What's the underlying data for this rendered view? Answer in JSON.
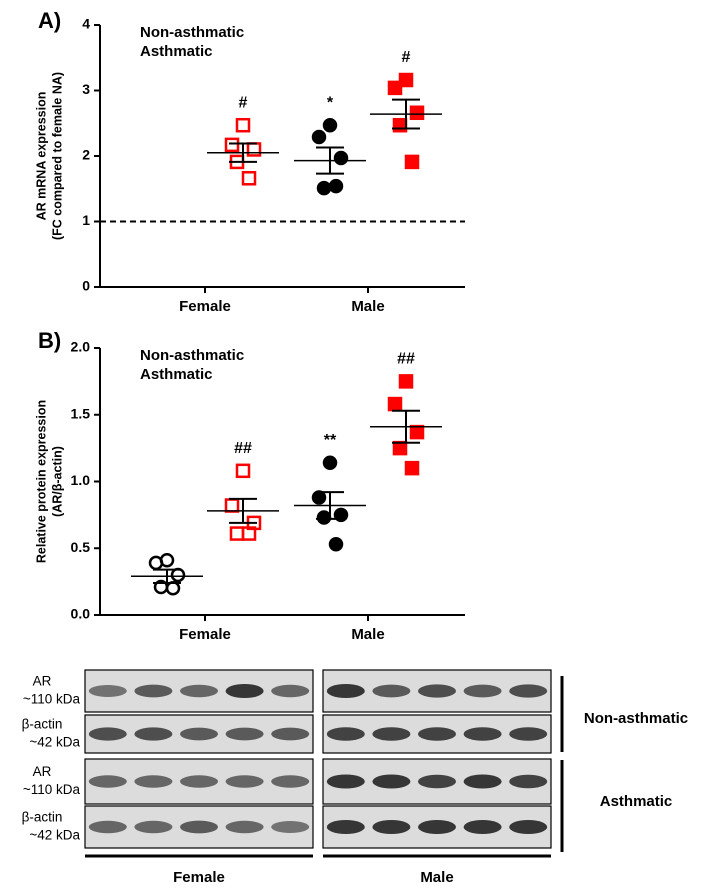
{
  "chart_data": [
    {
      "type": "dot",
      "panel": "A)",
      "y_label": [
        "AR mRNA expression",
        "(FC compared to female NA)"
      ],
      "categories": [
        "Female",
        "Male"
      ],
      "ylim": [
        0,
        4
      ],
      "yticks": [
        0,
        1,
        2,
        3,
        4
      ],
      "reference_line": 1,
      "legend": "upper left",
      "series": [
        {
          "name": "Non-asthmatic",
          "color": "#000000",
          "marker": "circle",
          "filled": [
            false,
            true
          ],
          "values": [
            null,
            [
              2.47,
              2.29,
              1.97,
              1.51,
              1.54
            ]
          ],
          "mean": [
            null,
            1.93
          ],
          "sem": [
            null,
            0.2
          ],
          "annotations": [
            null,
            "*"
          ]
        },
        {
          "name": "Asthmatic",
          "color": "#ff0000",
          "marker": "square",
          "filled": [
            false,
            true
          ],
          "values": [
            [
              2.47,
              2.17,
              2.1,
              1.91,
              1.66
            ],
            [
              3.16,
              3.04,
              2.66,
              2.47,
              1.91
            ]
          ],
          "mean": [
            2.05,
            2.64
          ],
          "sem": [
            0.14,
            0.22
          ],
          "annotations": [
            "#",
            "#"
          ]
        }
      ]
    },
    {
      "type": "dot",
      "panel": "B)",
      "y_label": [
        "Relative protein expression",
        "(AR/β-actin)"
      ],
      "categories": [
        "Female",
        "Male"
      ],
      "ylim": [
        0,
        2
      ],
      "yticks": [
        {
          "value": 0,
          "label": "0.0"
        },
        0.5,
        {
          "value": 1,
          "label": "1.0"
        },
        1.5,
        {
          "value": 2,
          "label": "2.0"
        }
      ],
      "legend": "upper left",
      "series": [
        {
          "name": "Non-asthmatic",
          "color": "#000000",
          "marker": "circle",
          "filled": [
            false,
            true
          ],
          "values": [
            [
              0.41,
              0.39,
              0.3,
              0.21,
              0.2
            ],
            [
              1.14,
              0.88,
              0.75,
              0.73,
              0.53
            ]
          ],
          "mean": [
            0.29,
            0.82
          ],
          "sem": [
            0.05,
            0.1
          ],
          "annotations": [
            null,
            "**"
          ]
        },
        {
          "name": "Asthmatic",
          "color": "#ff0000",
          "marker": "square",
          "filled": [
            false,
            true
          ],
          "values": [
            [
              1.08,
              0.82,
              0.69,
              0.61,
              0.61
            ],
            [
              1.75,
              1.58,
              1.37,
              1.25,
              1.1
            ]
          ],
          "mean": [
            0.78,
            1.41
          ],
          "sem": [
            0.09,
            0.12
          ],
          "annotations": [
            "##",
            "##"
          ]
        }
      ]
    }
  ],
  "blot": {
    "rows": [
      [
        "AR",
        "~110 kDa"
      ],
      [
        "β-actin",
        "~42 kDa"
      ],
      [
        "AR",
        "~110 kDa"
      ],
      [
        "β-actin",
        "~42 kDa"
      ]
    ],
    "groups": [
      "Non-asthmatic",
      "Asthmatic"
    ],
    "columns": [
      "Female",
      "Male"
    ]
  }
}
